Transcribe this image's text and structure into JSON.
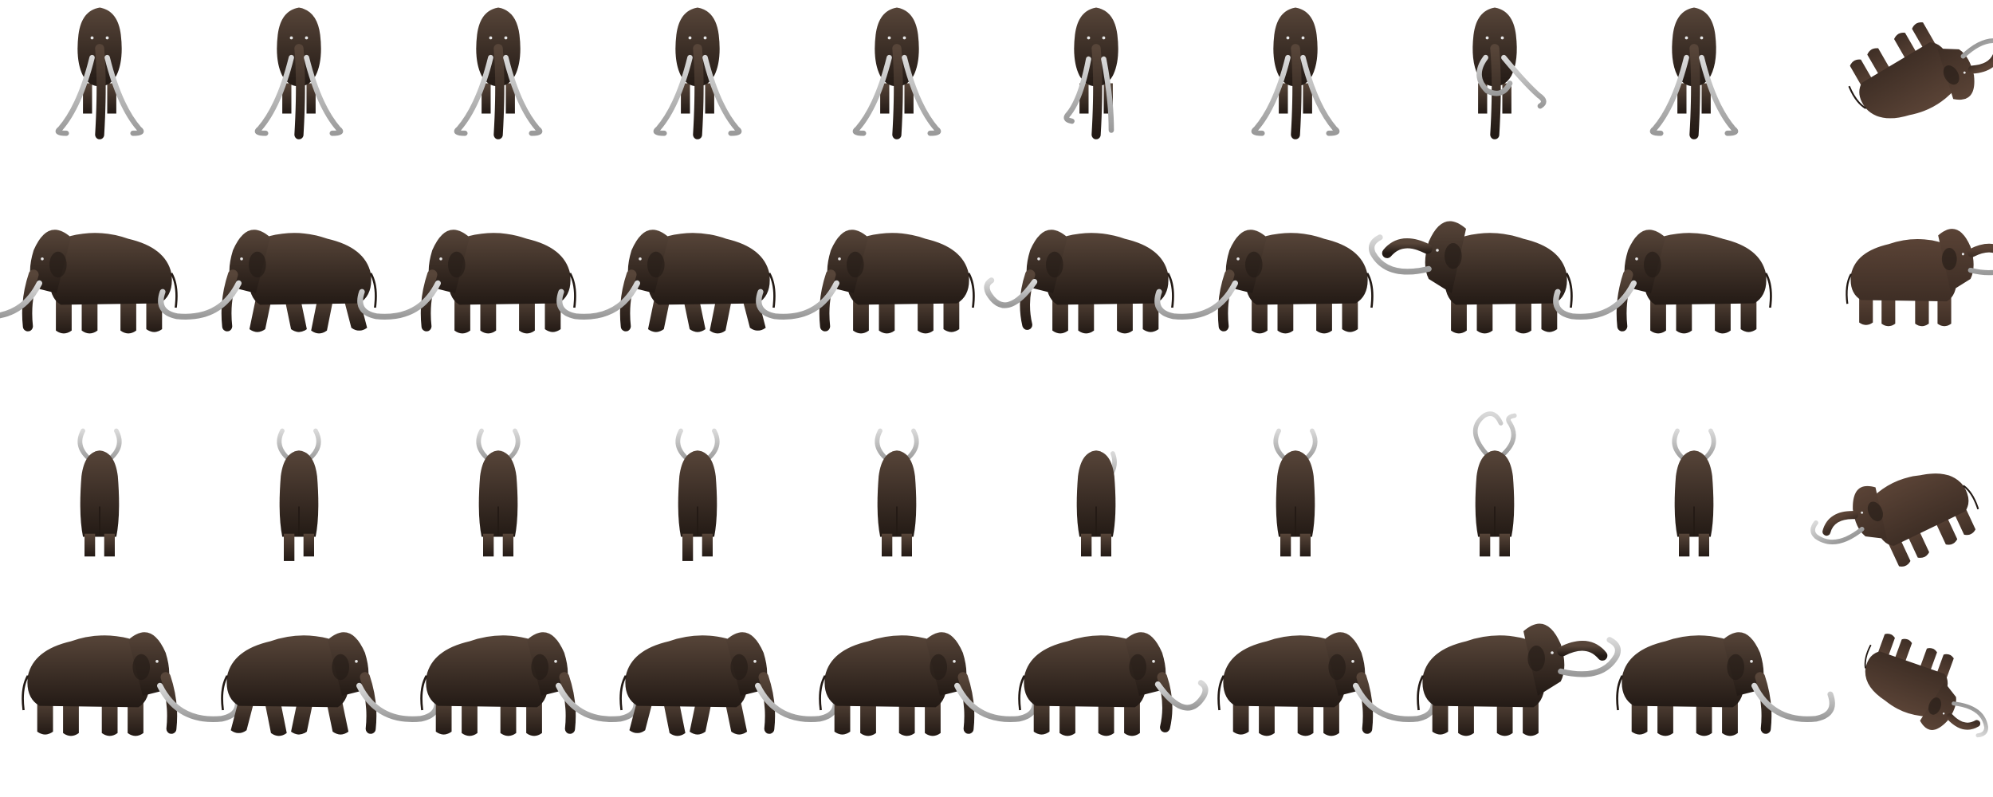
{
  "sprite_sheet": {
    "subject": "woolly-mammoth",
    "palette": {
      "body": "#3a2e27",
      "body_shadow": "#231a15",
      "body_highlight": "#574539",
      "alt_body": "#5a4336",
      "alt_shadow": "#3e2e25",
      "tusk": "#d9d9d9",
      "tusk_shadow": "#9a9a9a",
      "eye": "#e6e6e6",
      "background": "#ffffff"
    },
    "rows": [
      {
        "view": "front"
      },
      {
        "view": "side-left"
      },
      {
        "view": "back"
      },
      {
        "view": "side-right"
      }
    ],
    "columns": [
      {
        "variant": "standard"
      },
      {
        "variant": "walk"
      },
      {
        "variant": "standard"
      },
      {
        "variant": "walk"
      },
      {
        "variant": "standard"
      },
      {
        "variant": "small-tusks"
      },
      {
        "variant": "standard"
      },
      {
        "variant": "raised-tusks"
      },
      {
        "variant": "standard"
      },
      {
        "variant": "tumbled"
      }
    ]
  }
}
